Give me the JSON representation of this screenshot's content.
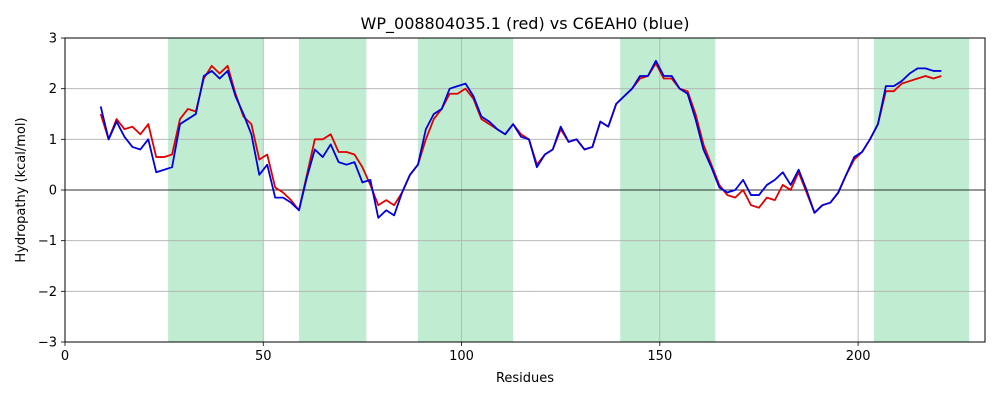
{
  "chart_data": {
    "type": "line",
    "title": "WP_008804035.1 (red) vs C6EAH0 (blue)",
    "xlabel": "Residues",
    "ylabel": "Hydropathy (kcal/mol)",
    "xlim": [
      0,
      232
    ],
    "ylim": [
      -3,
      3
    ],
    "xticks": [
      0,
      50,
      100,
      150,
      200
    ],
    "yticks": [
      -3,
      -2,
      -1,
      0,
      1,
      2,
      3
    ],
    "grid": true,
    "zero_line": true,
    "highlight_color": "#c0ecd2",
    "highlight_regions": [
      [
        26,
        50
      ],
      [
        59,
        76
      ],
      [
        89,
        113
      ],
      [
        140,
        164
      ],
      [
        204,
        228
      ]
    ],
    "series": [
      {
        "color": "#e00000",
        "x": [
          9,
          11,
          13,
          15,
          17,
          19,
          21,
          23,
          25,
          27,
          29,
          31,
          33,
          35,
          37,
          39,
          41,
          43,
          45,
          47,
          49,
          51,
          53,
          55,
          57,
          59,
          61,
          63,
          65,
          67,
          69,
          71,
          73,
          75,
          77,
          79,
          81,
          83,
          85,
          87,
          89,
          91,
          93,
          95,
          97,
          99,
          101,
          103,
          105,
          107,
          109,
          111,
          113,
          115,
          117,
          119,
          121,
          123,
          125,
          127,
          129,
          131,
          133,
          135,
          137,
          139,
          141,
          143,
          145,
          147,
          149,
          151,
          153,
          155,
          157,
          159,
          161,
          163,
          165,
          167,
          169,
          171,
          173,
          175,
          177,
          179,
          181,
          183,
          185,
          187,
          189,
          191,
          193,
          195,
          197,
          199,
          201,
          203,
          205,
          207,
          209,
          211,
          213,
          215,
          217,
          219,
          221
        ],
        "values": [
          1.5,
          1.0,
          1.4,
          1.2,
          1.25,
          1.1,
          1.3,
          0.65,
          0.65,
          0.7,
          1.4,
          1.6,
          1.55,
          2.2,
          2.45,
          2.3,
          2.45,
          1.9,
          1.45,
          1.3,
          0.6,
          0.7,
          0.05,
          -0.05,
          -0.2,
          -0.4,
          0.3,
          1.0,
          1.0,
          1.1,
          0.75,
          0.75,
          0.7,
          0.45,
          0.1,
          -0.3,
          -0.2,
          -0.3,
          -0.05,
          0.3,
          0.5,
          1.0,
          1.4,
          1.6,
          1.9,
          1.9,
          2.0,
          1.8,
          1.4,
          1.3,
          1.2,
          1.1,
          1.3,
          1.1,
          1.0,
          0.5,
          0.7,
          0.8,
          1.2,
          0.95,
          1.0,
          0.8,
          0.85,
          1.35,
          1.25,
          1.7,
          1.85,
          2.0,
          2.2,
          2.25,
          2.5,
          2.2,
          2.2,
          2.0,
          1.95,
          1.5,
          0.9,
          0.5,
          0.1,
          -0.1,
          -0.15,
          0.0,
          -0.3,
          -0.35,
          -0.15,
          -0.2,
          0.1,
          0.0,
          0.35,
          -0.05,
          -0.45,
          -0.3,
          -0.25,
          -0.05,
          0.3,
          0.6,
          0.75,
          1.0,
          1.3,
          1.95,
          1.95,
          2.1,
          2.15,
          2.2,
          2.25,
          2.2,
          2.25
        ]
      },
      {
        "color": "#0000dd",
        "x": [
          9,
          11,
          13,
          15,
          17,
          19,
          21,
          23,
          25,
          27,
          29,
          31,
          33,
          35,
          37,
          39,
          41,
          43,
          45,
          47,
          49,
          51,
          53,
          55,
          57,
          59,
          61,
          63,
          65,
          67,
          69,
          71,
          73,
          75,
          77,
          79,
          81,
          83,
          85,
          87,
          89,
          91,
          93,
          95,
          97,
          99,
          101,
          103,
          105,
          107,
          109,
          111,
          113,
          115,
          117,
          119,
          121,
          123,
          125,
          127,
          129,
          131,
          133,
          135,
          137,
          139,
          141,
          143,
          145,
          147,
          149,
          151,
          153,
          155,
          157,
          159,
          161,
          163,
          165,
          167,
          169,
          171,
          173,
          175,
          177,
          179,
          181,
          183,
          185,
          187,
          189,
          191,
          193,
          195,
          197,
          199,
          201,
          203,
          205,
          207,
          209,
          211,
          213,
          215,
          217,
          219,
          221
        ],
        "values": [
          1.65,
          1.0,
          1.35,
          1.05,
          0.85,
          0.8,
          1.0,
          0.35,
          0.4,
          0.45,
          1.3,
          1.4,
          1.5,
          2.25,
          2.35,
          2.2,
          2.35,
          1.85,
          1.5,
          1.1,
          0.3,
          0.5,
          -0.15,
          -0.15,
          -0.25,
          -0.4,
          0.25,
          0.8,
          0.65,
          0.9,
          0.55,
          0.5,
          0.55,
          0.15,
          0.2,
          -0.55,
          -0.4,
          -0.5,
          -0.05,
          0.3,
          0.5,
          1.2,
          1.5,
          1.6,
          2.0,
          2.05,
          2.1,
          1.85,
          1.45,
          1.35,
          1.2,
          1.1,
          1.3,
          1.05,
          1.0,
          0.45,
          0.7,
          0.8,
          1.25,
          0.95,
          1.0,
          0.8,
          0.85,
          1.35,
          1.25,
          1.7,
          1.85,
          2.0,
          2.25,
          2.25,
          2.55,
          2.25,
          2.25,
          2.0,
          1.9,
          1.4,
          0.8,
          0.45,
          0.05,
          -0.05,
          0.0,
          0.2,
          -0.1,
          -0.1,
          0.1,
          0.2,
          0.35,
          0.1,
          0.4,
          0.0,
          -0.45,
          -0.3,
          -0.25,
          -0.05,
          0.3,
          0.65,
          0.75,
          1.0,
          1.3,
          2.05,
          2.05,
          2.15,
          2.3,
          2.4,
          2.4,
          2.35,
          2.35
        ]
      }
    ]
  }
}
